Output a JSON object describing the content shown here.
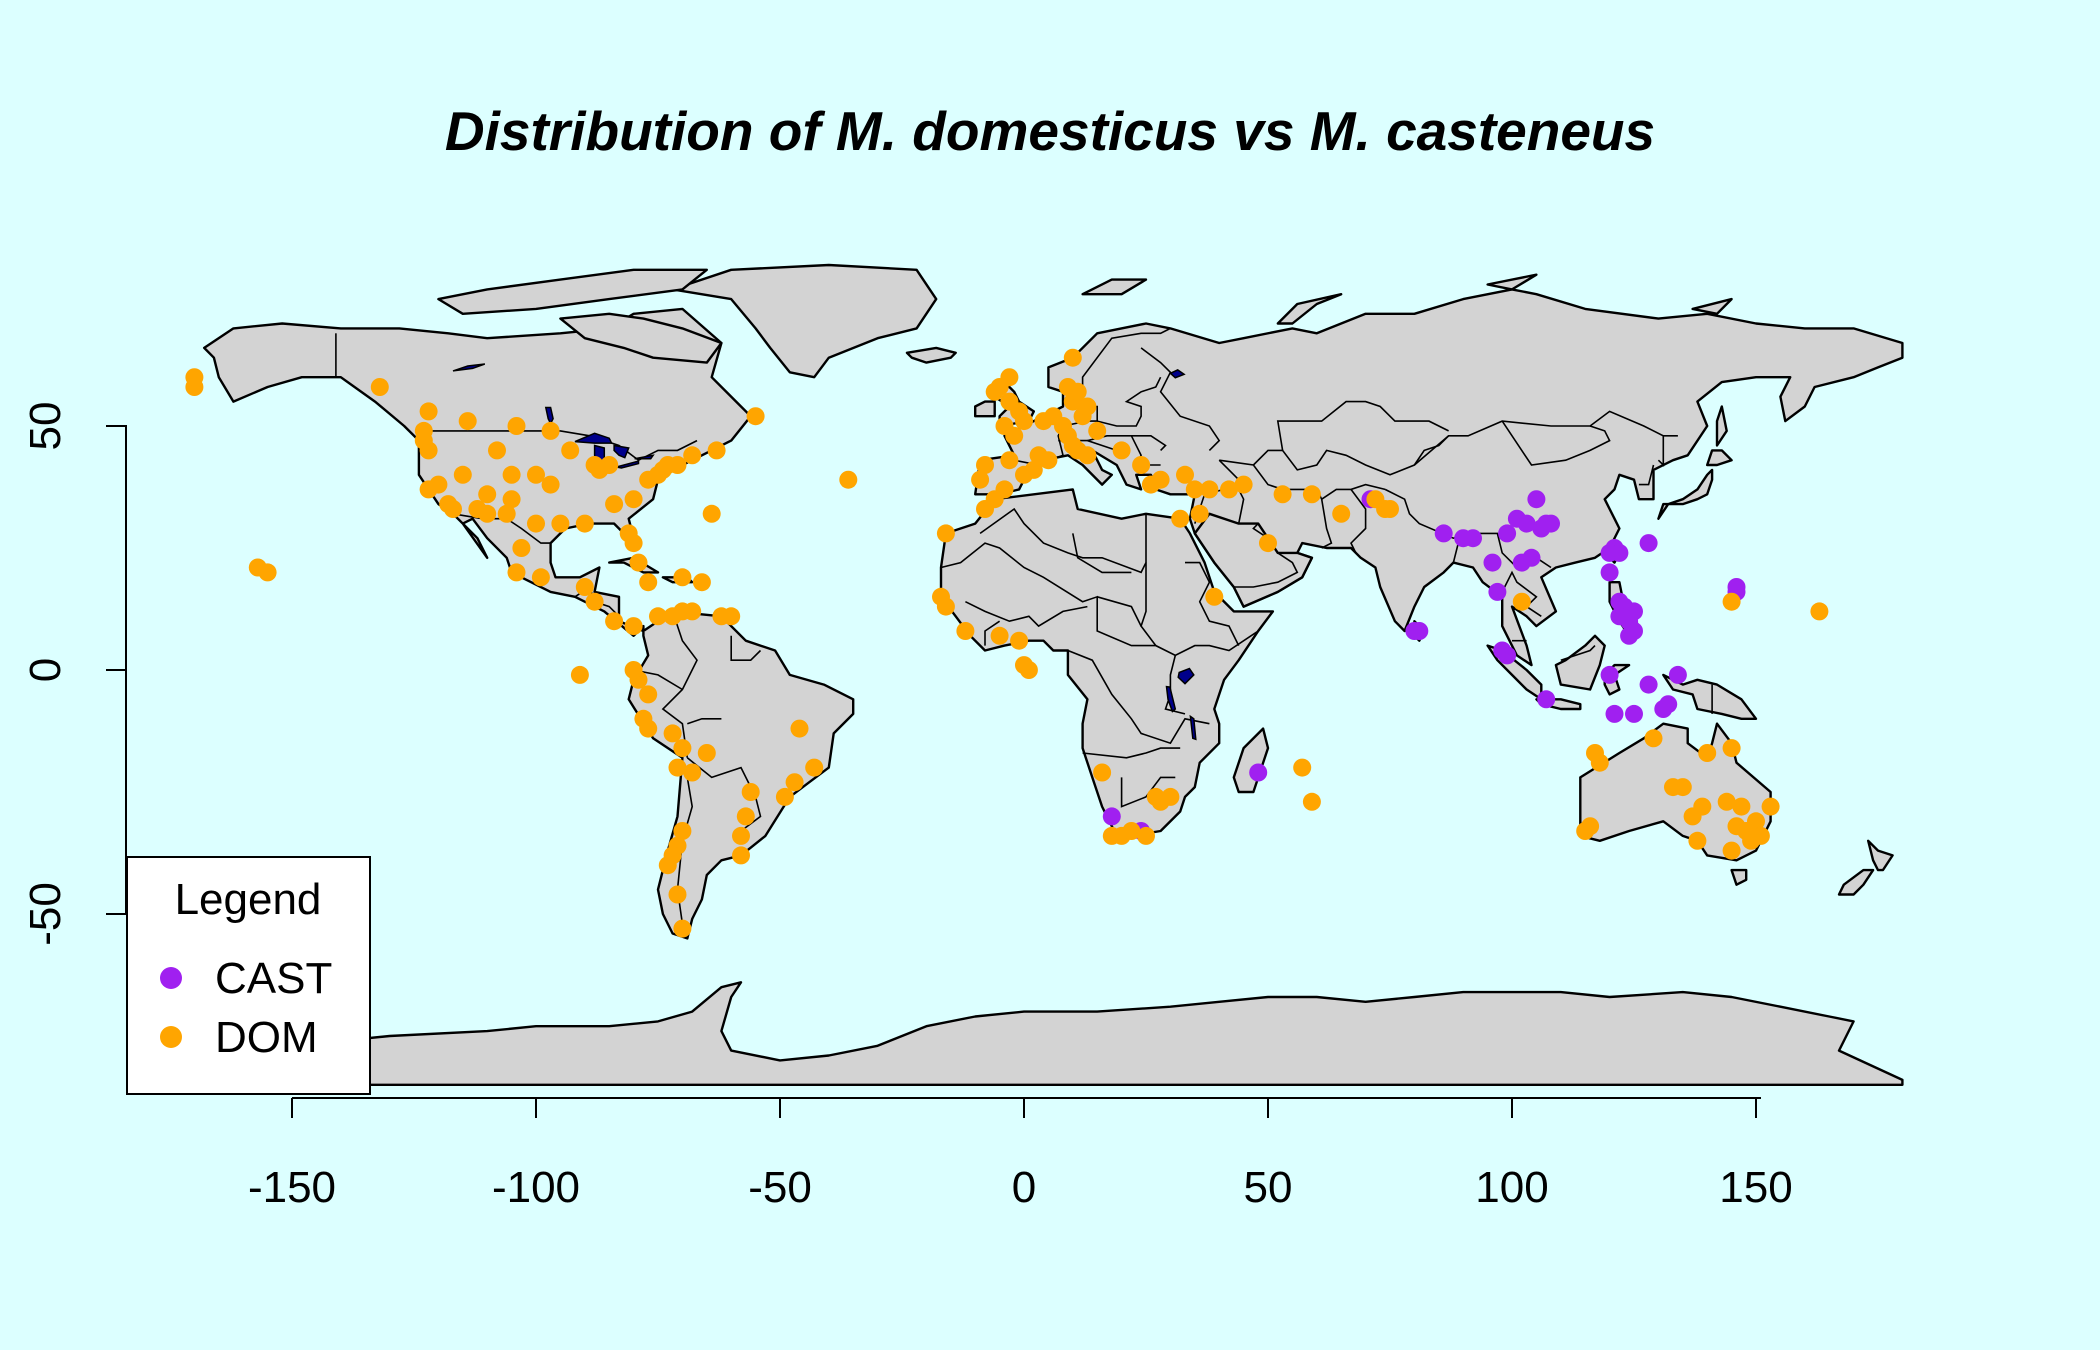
{
  "title": "Distribution of M. domesticus vs M. casteneus",
  "legend": {
    "title": "Legend",
    "position": "bottom-left",
    "items": [
      {
        "label": "CAST",
        "color": "#a020f0"
      },
      {
        "label": "DOM",
        "color": "#ffa500"
      }
    ]
  },
  "colors": {
    "background": "#dcffff",
    "land": "#d3d3d3",
    "lake": "#00008b",
    "cast": "#a020f0",
    "dom": "#ffa500"
  },
  "axes": {
    "x_ticks": [
      "-150",
      "-100",
      "-50",
      "0",
      "50",
      "100",
      "150"
    ],
    "y_ticks": [
      "-50",
      "0",
      "50"
    ]
  },
  "chart_data": {
    "type": "scatter",
    "title": "Distribution of M. domesticus vs M. casteneus",
    "xlabel": "",
    "ylabel": "",
    "xlim": [
      -180,
      180
    ],
    "ylim": [
      -90,
      85
    ],
    "grid": false,
    "legend_position": "bottom-left",
    "series": [
      {
        "name": "CAST",
        "color": "#a020f0",
        "points": [
          [
            71,
            35
          ],
          [
            86,
            28
          ],
          [
            90,
            27
          ],
          [
            92,
            27
          ],
          [
            96,
            22
          ],
          [
            97,
            16
          ],
          [
            99,
            28
          ],
          [
            101,
            31
          ],
          [
            102,
            22
          ],
          [
            103,
            30
          ],
          [
            104,
            23
          ],
          [
            105,
            35
          ],
          [
            106,
            29
          ],
          [
            107,
            30
          ],
          [
            108,
            30
          ],
          [
            121,
            25
          ],
          [
            120,
            24
          ],
          [
            122,
            24
          ],
          [
            120,
            20
          ],
          [
            122,
            14
          ],
          [
            123,
            13
          ],
          [
            122,
            11
          ],
          [
            124,
            10
          ],
          [
            125,
            8
          ],
          [
            124,
            7
          ],
          [
            125,
            12
          ],
          [
            128,
            26
          ],
          [
            80,
            8
          ],
          [
            81,
            8
          ],
          [
            98,
            4
          ],
          [
            99,
            3
          ],
          [
            107,
            -6
          ],
          [
            120,
            -1
          ],
          [
            121,
            -9
          ],
          [
            125,
            -9
          ],
          [
            128,
            -3
          ],
          [
            131,
            -8
          ],
          [
            132,
            -7
          ],
          [
            134,
            -1
          ],
          [
            146,
            16
          ],
          [
            146,
            17
          ],
          [
            48,
            -21
          ],
          [
            18,
            -30
          ],
          [
            24,
            -33
          ]
        ]
      },
      {
        "name": "DOM",
        "color": "#ffa500",
        "points": [
          [
            -170,
            58
          ],
          [
            -170,
            60
          ],
          [
            -132,
            58
          ],
          [
            -122,
            53
          ],
          [
            -123,
            47
          ],
          [
            -122,
            45
          ],
          [
            -122,
            37
          ],
          [
            -118,
            34
          ],
          [
            -117,
            33
          ],
          [
            -112,
            33
          ],
          [
            -110,
            32
          ],
          [
            -105,
            40
          ],
          [
            -105,
            35
          ],
          [
            -100,
            40
          ],
          [
            -97,
            38
          ],
          [
            -95,
            30
          ],
          [
            -90,
            30
          ],
          [
            -88,
            42
          ],
          [
            -87,
            41
          ],
          [
            -85,
            42
          ],
          [
            -84,
            34
          ],
          [
            -81,
            28
          ],
          [
            -80,
            26
          ],
          [
            -80,
            35
          ],
          [
            -77,
            39
          ],
          [
            -75,
            40
          ],
          [
            -74,
            41
          ],
          [
            -73,
            42
          ],
          [
            -71,
            42
          ],
          [
            -68,
            44
          ],
          [
            -63,
            45
          ],
          [
            -93,
            45
          ],
          [
            -97,
            49
          ],
          [
            -104,
            50
          ],
          [
            -114,
            51
          ],
          [
            -123,
            49
          ],
          [
            -108,
            45
          ],
          [
            -115,
            40
          ],
          [
            -120,
            38
          ],
          [
            -110,
            36
          ],
          [
            -106,
            32
          ],
          [
            -100,
            30
          ],
          [
            -104,
            20
          ],
          [
            -99,
            19
          ],
          [
            -103,
            25
          ],
          [
            -90,
            17
          ],
          [
            -88,
            14
          ],
          [
            -84,
            10
          ],
          [
            -80,
            9
          ],
          [
            -79,
            22
          ],
          [
            -77,
            18
          ],
          [
            -70,
            19
          ],
          [
            -66,
            18
          ],
          [
            -64,
            32
          ],
          [
            -75,
            11
          ],
          [
            -72,
            11
          ],
          [
            -70,
            12
          ],
          [
            -68,
            12
          ],
          [
            -62,
            11
          ],
          [
            -60,
            11
          ],
          [
            -91,
            -1
          ],
          [
            -157,
            21
          ],
          [
            -155,
            20
          ],
          [
            -79,
            -2
          ],
          [
            -80,
            0
          ],
          [
            -77,
            -5
          ],
          [
            -78,
            -10
          ],
          [
            -77,
            -12
          ],
          [
            -72,
            -13
          ],
          [
            -70,
            -16
          ],
          [
            -71,
            -20
          ],
          [
            -65,
            -17
          ],
          [
            -68,
            -21
          ],
          [
            -70,
            -33
          ],
          [
            -71,
            -36
          ],
          [
            -72,
            -38
          ],
          [
            -73,
            -40
          ],
          [
            -71,
            -46
          ],
          [
            -70,
            -53
          ],
          [
            -58,
            -34
          ],
          [
            -57,
            -30
          ],
          [
            -56,
            -25
          ],
          [
            -49,
            -26
          ],
          [
            -47,
            -23
          ],
          [
            -43,
            -20
          ],
          [
            -46,
            -12
          ],
          [
            -58,
            -38
          ],
          [
            -55,
            52
          ],
          [
            -36,
            39
          ],
          [
            -16,
            28
          ],
          [
            -8,
            33
          ],
          [
            -6,
            35
          ],
          [
            -4,
            37
          ],
          [
            -9,
            39
          ],
          [
            -8,
            42
          ],
          [
            -3,
            43
          ],
          [
            0,
            40
          ],
          [
            2,
            41
          ],
          [
            3,
            44
          ],
          [
            5,
            43
          ],
          [
            -2,
            48
          ],
          [
            -4,
            50
          ],
          [
            0,
            51
          ],
          [
            -1,
            53
          ],
          [
            -3,
            55
          ],
          [
            -6,
            57
          ],
          [
            -5,
            58
          ],
          [
            -3,
            60
          ],
          [
            4,
            51
          ],
          [
            6,
            52
          ],
          [
            8,
            50
          ],
          [
            9,
            48
          ],
          [
            10,
            46
          ],
          [
            11,
            45
          ],
          [
            13,
            44
          ],
          [
            12,
            52
          ],
          [
            13,
            54
          ],
          [
            10,
            55
          ],
          [
            11,
            57
          ],
          [
            9,
            58
          ],
          [
            10,
            64
          ],
          [
            15,
            49
          ],
          [
            20,
            45
          ],
          [
            24,
            42
          ],
          [
            26,
            38
          ],
          [
            28,
            39
          ],
          [
            33,
            40
          ],
          [
            35,
            37
          ],
          [
            32,
            31
          ],
          [
            36,
            32
          ],
          [
            38,
            37
          ],
          [
            42,
            37
          ],
          [
            45,
            38
          ],
          [
            53,
            36
          ],
          [
            59,
            36
          ],
          [
            65,
            32
          ],
          [
            72,
            35
          ],
          [
            74,
            33
          ],
          [
            75,
            33
          ],
          [
            50,
            26
          ],
          [
            39,
            15
          ],
          [
            -17,
            15
          ],
          [
            -16,
            13
          ],
          [
            -12,
            8
          ],
          [
            -5,
            7
          ],
          [
            -1,
            6
          ],
          [
            0,
            1
          ],
          [
            1,
            0
          ],
          [
            16,
            -21
          ],
          [
            18,
            -34
          ],
          [
            20,
            -34
          ],
          [
            22,
            -33
          ],
          [
            25,
            -34
          ],
          [
            27,
            -26
          ],
          [
            28,
            -27
          ],
          [
            30,
            -26
          ],
          [
            57,
            -20
          ],
          [
            59,
            -27
          ],
          [
            102,
            14
          ],
          [
            115,
            -33
          ],
          [
            116,
            -32
          ],
          [
            117,
            -17
          ],
          [
            118,
            -19
          ],
          [
            129,
            -14
          ],
          [
            133,
            -24
          ],
          [
            135,
            -24
          ],
          [
            137,
            -30
          ],
          [
            138,
            -35
          ],
          [
            139,
            -28
          ],
          [
            140,
            -17
          ],
          [
            144,
            -27
          ],
          [
            145,
            -37
          ],
          [
            145,
            -16
          ],
          [
            146,
            -32
          ],
          [
            147,
            -28
          ],
          [
            148,
            -33
          ],
          [
            149,
            -35
          ],
          [
            150,
            -31
          ],
          [
            151,
            -34
          ],
          [
            153,
            -28
          ],
          [
            163,
            12
          ],
          [
            145,
            14
          ]
        ]
      }
    ]
  }
}
